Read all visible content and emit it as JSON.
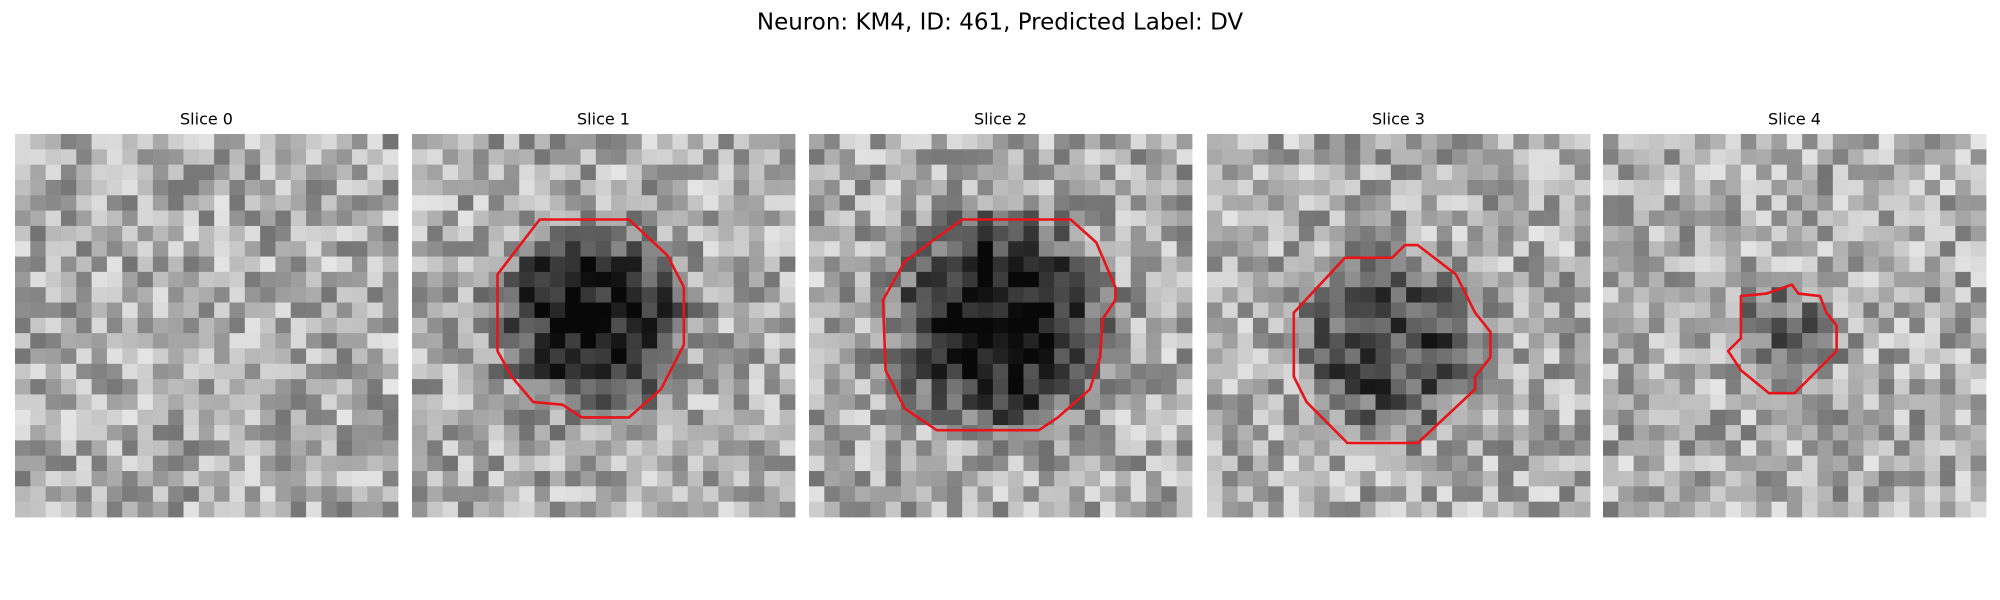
{
  "title": "Neuron: KM4, ID: 461, Predicted Label: DV",
  "panels": [
    {
      "title": "Slice 0"
    },
    {
      "title": "Slice 1"
    },
    {
      "title": "Slice 2"
    },
    {
      "title": "Slice 3"
    },
    {
      "title": "Slice 4"
    }
  ]
}
